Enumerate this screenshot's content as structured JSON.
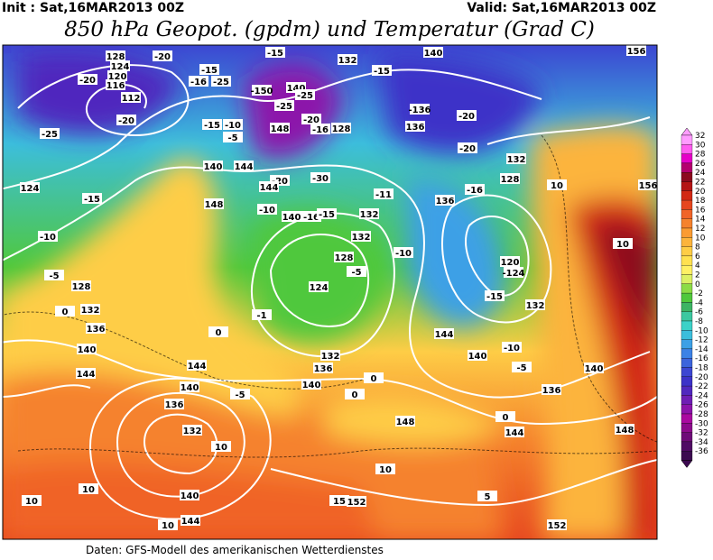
{
  "header": {
    "init": "Init : Sat,16MAR2013 00Z",
    "valid": "Valid: Sat,16MAR2013 00Z",
    "title": "850 hPa Geopot. (gpdm) und Temperatur (Grad C)"
  },
  "colorbar": {
    "labels": [
      32,
      30,
      28,
      26,
      24,
      22,
      20,
      18,
      16,
      14,
      12,
      10,
      8,
      6,
      4,
      2,
      0,
      -2,
      -4,
      -6,
      -8,
      -10,
      -12,
      -14,
      -16,
      -18,
      -20,
      -22,
      -24,
      -26,
      -28,
      -30,
      -32,
      -34,
      -36
    ],
    "colors": [
      "#ff9cff",
      "#ff5cf0",
      "#e600c8",
      "#b4006e",
      "#8c0a1e",
      "#b41414",
      "#d22814",
      "#e6461e",
      "#f06428",
      "#f5822d",
      "#fa9b32",
      "#fcb43c",
      "#fecd46",
      "#ffe150",
      "#fff064",
      "#dcf064",
      "#8cdc46",
      "#50c83c",
      "#3cb464",
      "#3cc8a0",
      "#3cd2c8",
      "#3cbedc",
      "#3ca0e6",
      "#3c82e6",
      "#3c64dc",
      "#3c46d2",
      "#3c32c8",
      "#5028be",
      "#6e1eb4",
      "#8c14aa",
      "#aa0aa0",
      "#8c0a8c",
      "#6e0a78",
      "#500a64",
      "#3c0a50"
    ]
  },
  "map_labels": [
    "128",
    "124",
    "120",
    "116",
    "112",
    "-20",
    "-20",
    "-15",
    "-16",
    "-25",
    "-20",
    "-25",
    "-15",
    "-10",
    "-5",
    "-15",
    "132",
    "-15",
    "140",
    "156",
    "-150",
    "140",
    "-25",
    "-25",
    "-20",
    "148",
    "-16",
    "128",
    "-136",
    "-20",
    "136",
    "-20",
    "132",
    "140",
    "144",
    "-20",
    "-30",
    "144",
    "128",
    "10",
    "156",
    "124",
    "-15",
    "148",
    "-10",
    "140",
    "-16",
    "-15",
    "-11",
    "132",
    "136",
    "-16",
    "-10",
    "132",
    "-5",
    "128",
    "128",
    "-5",
    "124",
    "-10",
    "120",
    "-124",
    "-15",
    "132",
    "0",
    "132",
    "136",
    "-1",
    "0",
    "140",
    "132",
    "136",
    "144",
    "-10",
    "140",
    "-5",
    "140",
    "144",
    "144",
    "140",
    "0",
    "136",
    "140",
    "-5",
    "0",
    "136",
    "132",
    "10",
    "148",
    "0",
    "144",
    "148",
    "10",
    "10",
    "10",
    "140",
    "15",
    "152",
    "10",
    "5",
    "144",
    "10",
    "152"
  ],
  "footer": "Daten: GFS-Modell des amerikanischen Wetterdienstes"
}
